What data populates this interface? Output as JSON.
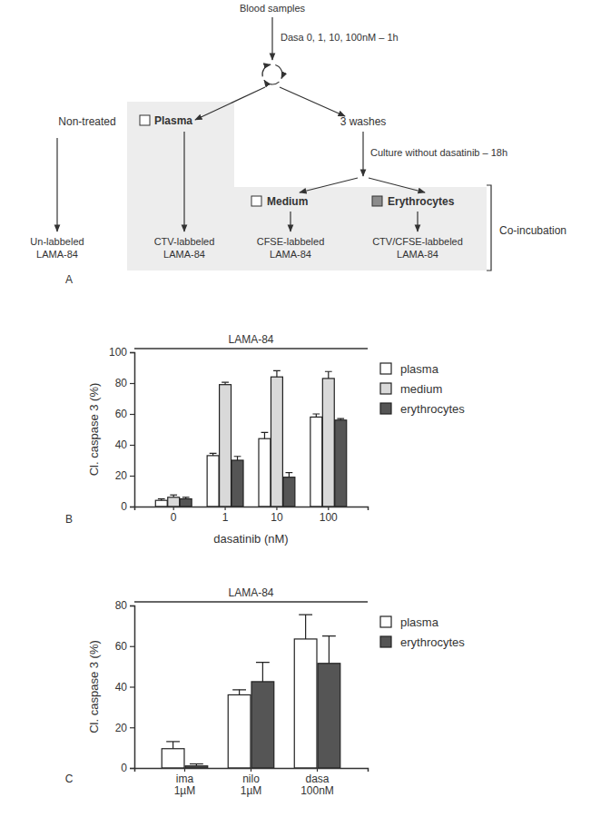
{
  "diagram": {
    "panel_label": "A",
    "start": "Blood samples",
    "treatment": "Dasa 0, 1, 10, 100nM – 1h",
    "non_treated": "Non-treated",
    "plasma": "Plasma",
    "washes": "3 washes",
    "culture": "Culture without dasatinib – 18h",
    "medium": "Medium",
    "erythrocytes": "Erythrocytes",
    "co_incubation": "Co-incubation",
    "targets": [
      [
        "Un-labbeled",
        "LAMA-84"
      ],
      [
        "CTV-labbeled",
        "LAMA-84"
      ],
      [
        "CFSE-labbeled",
        "LAMA-84"
      ],
      [
        "CTV/CFSE-labbeled",
        "LAMA-84"
      ]
    ]
  },
  "chart_data": [
    {
      "type": "bar",
      "panel_label": "B",
      "title": "LAMA-84",
      "y_label": "Cl. caspase 3 (%)",
      "x_label": "dasatinib (nM)",
      "categories": [
        "0",
        "1",
        "10",
        "100"
      ],
      "series": [
        {
          "name": "plasma",
          "color": "#ffffff",
          "values": [
            4,
            33,
            44,
            58
          ],
          "errors": [
            1,
            1.5,
            4,
            2
          ]
        },
        {
          "name": "medium",
          "color": "#d9d9d9",
          "values": [
            6,
            79,
            84,
            83
          ],
          "errors": [
            1.5,
            1.5,
            4,
            4.5
          ]
        },
        {
          "name": "erythrocytes",
          "color": "#555555",
          "values": [
            5,
            30,
            19,
            56
          ],
          "errors": [
            1,
            2.5,
            3,
            1
          ]
        }
      ],
      "ylim": [
        0,
        100
      ],
      "yticks": [
        0,
        20,
        40,
        60,
        80,
        100
      ],
      "legend": "right"
    },
    {
      "type": "bar",
      "panel_label": "C",
      "title": "LAMA-84",
      "y_label": "Cl. caspase 3 (%)",
      "categories": [
        "ima\n1µM",
        "nilo\n1µM",
        "dasa\n100nM"
      ],
      "series": [
        {
          "name": "plasma",
          "color": "#ffffff",
          "values": [
            9.5,
            36,
            63.5
          ],
          "errors": [
            3.5,
            2.5,
            12
          ]
        },
        {
          "name": "erythrocytes",
          "color": "#555555",
          "values": [
            1,
            42.5,
            51.5
          ],
          "errors": [
            1,
            9.5,
            13.5
          ]
        }
      ],
      "ylim": [
        0,
        80
      ],
      "yticks": [
        0,
        20,
        40,
        60,
        80
      ],
      "legend": "right"
    }
  ]
}
